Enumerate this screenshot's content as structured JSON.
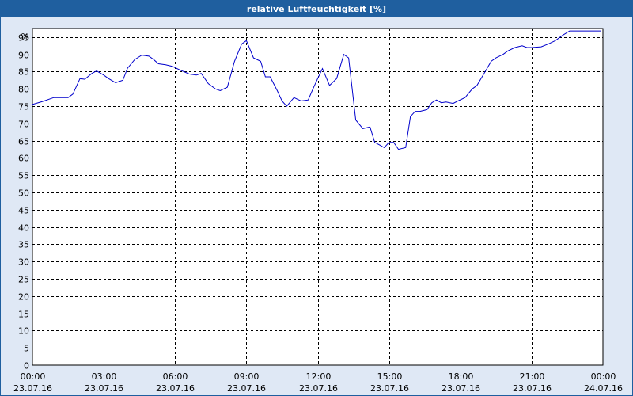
{
  "window": {
    "title": "relative Luftfeuchtigkeit [%]"
  },
  "chart_data": {
    "type": "line",
    "title": "relative Luftfeuchtigkeit [%]",
    "y_unit_label": "%",
    "ylim": [
      0,
      97.5
    ],
    "yticks": [
      0,
      5,
      10,
      15,
      20,
      25,
      30,
      35,
      40,
      45,
      50,
      55,
      60,
      65,
      70,
      75,
      80,
      85,
      90,
      95
    ],
    "xlim_hours": [
      0,
      24
    ],
    "xticks": [
      {
        "time": "00:00",
        "date": "23.07.16"
      },
      {
        "time": "03:00",
        "date": "23.07.16"
      },
      {
        "time": "06:00",
        "date": "23.07.16"
      },
      {
        "time": "09:00",
        "date": "23.07.16"
      },
      {
        "time": "12:00",
        "date": "23.07.16"
      },
      {
        "time": "15:00",
        "date": "23.07.16"
      },
      {
        "time": "18:00",
        "date": "23.07.16"
      },
      {
        "time": "21:00",
        "date": "23.07.16"
      },
      {
        "time": "00:00",
        "date": "24.07.16"
      }
    ],
    "grid": true,
    "series": [
      {
        "color": "#0000cc",
        "x": [
          0.0,
          0.4,
          0.9,
          1.1,
          1.5,
          1.7,
          2.0,
          2.2,
          2.5,
          2.7,
          3.0,
          3.2,
          3.5,
          3.8,
          4.0,
          4.3,
          4.6,
          4.9,
          5.1,
          5.3,
          5.6,
          5.9,
          6.2,
          6.6,
          6.9,
          7.1,
          7.4,
          7.7,
          7.9,
          8.2,
          8.5,
          8.8,
          9.0,
          9.3,
          9.6,
          9.8,
          10.0,
          10.3,
          10.5,
          10.7,
          11.0,
          11.3,
          11.6,
          11.8,
          12.0,
          12.2,
          12.5,
          12.8,
          13.1,
          13.3,
          13.6,
          13.9,
          14.2,
          14.4,
          14.6,
          14.8,
          15.0,
          15.2,
          15.4,
          15.7,
          15.9,
          16.1,
          16.3,
          16.6,
          16.8,
          17.0,
          17.2,
          17.4,
          17.7,
          17.9,
          18.2,
          18.5,
          18.7,
          19.0,
          19.3,
          19.5,
          19.8,
          20.0,
          20.3,
          20.6,
          20.8,
          21.0,
          21.4,
          21.7,
          22.0,
          22.3,
          22.6,
          23.0,
          23.3,
          23.6,
          23.9
        ],
        "y": [
          75.5,
          76.3,
          77.5,
          77.5,
          77.5,
          78.5,
          83.0,
          82.8,
          84.5,
          85.2,
          84.0,
          83.0,
          81.8,
          82.5,
          86.0,
          88.5,
          89.8,
          89.5,
          88.5,
          87.3,
          87.0,
          86.5,
          85.5,
          84.3,
          84.0,
          84.5,
          81.5,
          80.0,
          79.5,
          80.5,
          88.0,
          93.0,
          94.0,
          89.0,
          88.0,
          83.5,
          83.5,
          79.5,
          76.5,
          75.0,
          77.5,
          76.5,
          76.8,
          80.0,
          83.0,
          85.9,
          81.0,
          83.0,
          90.0,
          89.0,
          71.0,
          68.5,
          69.0,
          64.5,
          63.8,
          63.0,
          64.5,
          64.5,
          62.5,
          63.0,
          72.0,
          73.5,
          73.5,
          74.0,
          76.0,
          76.8,
          76.0,
          76.2,
          75.8,
          76.5,
          77.5,
          80.0,
          81.0,
          84.5,
          88.0,
          89.0,
          90.0,
          91.0,
          92.0,
          92.5,
          92.0,
          92.0,
          92.2,
          93.0,
          94.0,
          95.5,
          96.8,
          96.8,
          96.8,
          96.8,
          96.8
        ]
      }
    ]
  }
}
